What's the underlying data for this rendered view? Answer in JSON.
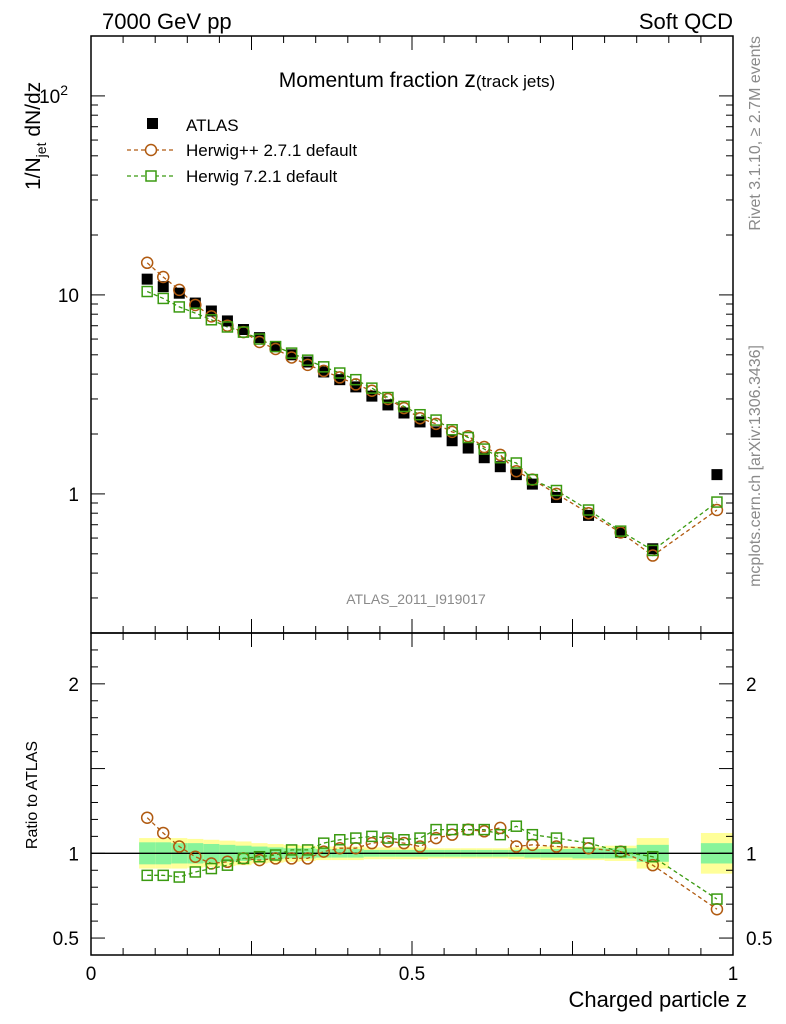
{
  "header": {
    "left": "7000 GeV pp",
    "right": "Soft QCD"
  },
  "side_labels": {
    "rivet": "Rivet 3.1.10, ≥ 2.7M events",
    "mcplots": "mcplots.cern.ch [arXiv:1306.3436]"
  },
  "colors": {
    "atlas": "#000000",
    "herwigpp": "#b05a10",
    "herwig7": "#3a9a10",
    "band_inner": "#88f49a",
    "band_outer": "#ffff99"
  },
  "chart_data": [
    {
      "type": "scatter",
      "title_main": "Momentum fraction ",
      "title_var": "z",
      "title_sub": "(track jets)",
      "ylabel_prefix": "1/N",
      "ylabel_sub": "jet",
      "ylabel_suffix": " dN/dz",
      "yscale": "log",
      "ylim": [
        0.2,
        200
      ],
      "xlim": [
        0,
        1
      ],
      "yticks": [
        {
          "v": 1,
          "label": "1"
        },
        {
          "v": 10,
          "label": "10"
        },
        {
          "v": 100,
          "label": "10",
          "sup": "2"
        }
      ],
      "watermark": "ATLAS_2011_I919017",
      "legend_position": "top-left",
      "x": [
        0.0875,
        0.1125,
        0.1375,
        0.1625,
        0.1875,
        0.2125,
        0.2375,
        0.2625,
        0.2875,
        0.3125,
        0.3375,
        0.3625,
        0.3875,
        0.4125,
        0.4375,
        0.4625,
        0.4875,
        0.5125,
        0.5375,
        0.5625,
        0.5875,
        0.6125,
        0.6375,
        0.6625,
        0.6875,
        0.725,
        0.775,
        0.825,
        0.875,
        0.975
      ],
      "series": [
        {
          "name": "ATLAS",
          "marker": "filled-square",
          "values": [
            12.0,
            11.0,
            10.2,
            9.1,
            8.3,
            7.4,
            6.7,
            6.1,
            5.5,
            5.0,
            4.6,
            4.1,
            3.75,
            3.45,
            3.1,
            2.8,
            2.55,
            2.3,
            2.05,
            1.85,
            1.7,
            1.52,
            1.37,
            1.25,
            1.12,
            0.96,
            0.78,
            0.64,
            0.53,
            1.25
          ]
        },
        {
          "name": "Herwig++ 2.7.1 default",
          "marker": "open-circle",
          "values": [
            14.5,
            12.3,
            10.6,
            8.9,
            7.8,
            7.0,
            6.5,
            5.8,
            5.35,
            4.85,
            4.45,
            4.15,
            3.85,
            3.55,
            3.3,
            3.0,
            2.7,
            2.4,
            2.25,
            2.05,
            1.95,
            1.72,
            1.57,
            1.3,
            1.18,
            1.0,
            0.8,
            0.64,
            0.49,
            0.83
          ]
        },
        {
          "name": "Herwig 7.2.1 default",
          "marker": "open-square",
          "values": [
            10.4,
            9.6,
            8.7,
            8.1,
            7.5,
            6.9,
            6.5,
            6.0,
            5.5,
            5.1,
            4.7,
            4.35,
            4.05,
            3.75,
            3.4,
            3.05,
            2.75,
            2.5,
            2.35,
            2.1,
            1.92,
            1.68,
            1.52,
            1.43,
            1.18,
            1.04,
            0.83,
            0.65,
            0.52,
            0.91
          ]
        }
      ]
    },
    {
      "type": "scatter",
      "ylabel": "Ratio to ATLAS",
      "xlabel": "Charged particle z",
      "ylim": [
        0.4,
        2.3
      ],
      "xlim": [
        0,
        1
      ],
      "xticks": [
        {
          "v": 0,
          "label": "0"
        },
        {
          "v": 0.5,
          "label": "0.5"
        },
        {
          "v": 1,
          "label": "1"
        }
      ],
      "yticks": [
        {
          "v": 0.5,
          "label": "0.5"
        },
        {
          "v": 1,
          "label": "1"
        },
        {
          "v": 2,
          "label": "2"
        }
      ],
      "x": [
        0.0875,
        0.1125,
        0.1375,
        0.1625,
        0.1875,
        0.2125,
        0.2375,
        0.2625,
        0.2875,
        0.3125,
        0.3375,
        0.3625,
        0.3875,
        0.4125,
        0.4375,
        0.4625,
        0.4875,
        0.5125,
        0.5375,
        0.5625,
        0.5875,
        0.6125,
        0.6375,
        0.6625,
        0.6875,
        0.725,
        0.775,
        0.825,
        0.875,
        0.975
      ],
      "band_edges": [
        0.075,
        0.1,
        0.125,
        0.15,
        0.175,
        0.2,
        0.225,
        0.25,
        0.275,
        0.3,
        0.325,
        0.35,
        0.375,
        0.4,
        0.425,
        0.45,
        0.475,
        0.5,
        0.525,
        0.55,
        0.575,
        0.6,
        0.625,
        0.65,
        0.675,
        0.7,
        0.75,
        0.8,
        0.85,
        0.9,
        0.95,
        1.0
      ],
      "band_inner": [
        0.065,
        0.065,
        0.06,
        0.06,
        0.055,
        0.05,
        0.045,
        0.04,
        0.035,
        0.03,
        0.03,
        0.025,
        0.025,
        0.025,
        0.02,
        0.02,
        0.02,
        0.02,
        0.02,
        0.02,
        0.02,
        0.02,
        0.02,
        0.02,
        0.025,
        0.025,
        0.03,
        0.03,
        0.05,
        null,
        0.06
      ],
      "band_outer": [
        0.09,
        0.09,
        0.09,
        0.085,
        0.08,
        0.075,
        0.07,
        0.06,
        0.055,
        0.05,
        0.045,
        0.04,
        0.04,
        0.04,
        0.035,
        0.035,
        0.035,
        0.035,
        0.03,
        0.03,
        0.03,
        0.03,
        0.03,
        0.035,
        0.035,
        0.04,
        0.04,
        0.045,
        0.09,
        null,
        0.12
      ],
      "series": [
        {
          "name": "Herwig++ 2.7.1 default",
          "marker": "open-circle",
          "values": [
            1.21,
            1.12,
            1.04,
            0.98,
            0.94,
            0.95,
            0.97,
            0.96,
            0.97,
            0.97,
            0.97,
            1.01,
            1.03,
            1.03,
            1.06,
            1.07,
            1.06,
            1.04,
            1.09,
            1.11,
            1.14,
            1.13,
            1.15,
            1.04,
            1.05,
            1.04,
            1.03,
            1.01,
            0.93,
            0.67
          ]
        },
        {
          "name": "Herwig 7.2.1 default",
          "marker": "open-square",
          "values": [
            0.87,
            0.87,
            0.86,
            0.89,
            0.91,
            0.93,
            0.97,
            0.98,
            0.99,
            1.02,
            1.02,
            1.06,
            1.08,
            1.09,
            1.1,
            1.09,
            1.08,
            1.09,
            1.14,
            1.14,
            1.14,
            1.14,
            1.11,
            1.16,
            1.11,
            1.09,
            1.06,
            1.01,
            0.98,
            0.73
          ]
        }
      ]
    }
  ]
}
